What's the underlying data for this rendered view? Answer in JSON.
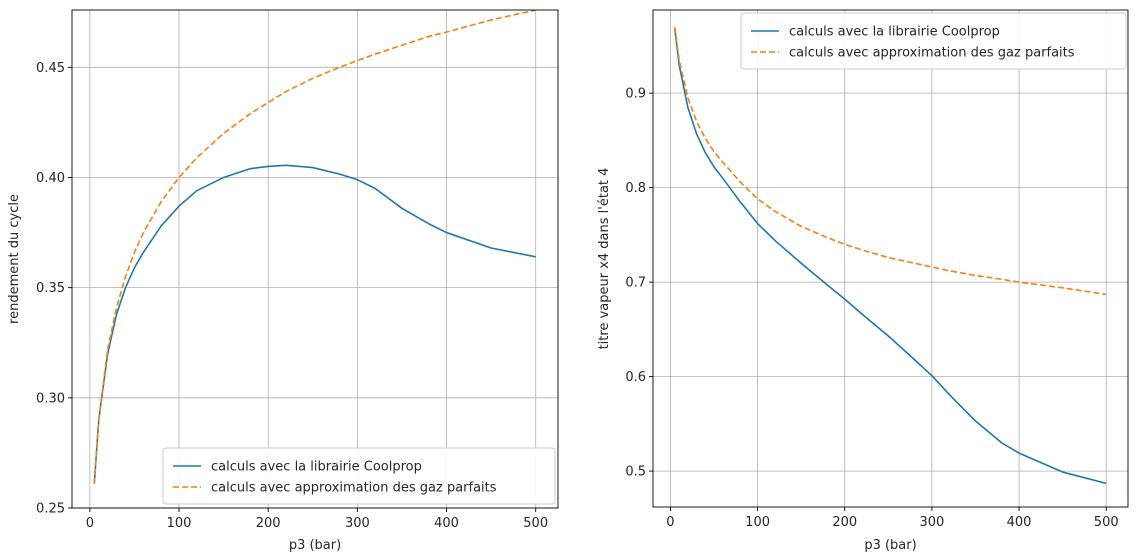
{
  "chart_data": [
    {
      "type": "line",
      "title": "",
      "xlabel": "p3 (bar)",
      "ylabel": "rendement du cycle",
      "xlim": [
        -20,
        525
      ],
      "ylim": [
        0.25,
        0.476
      ],
      "xticks": [
        0,
        100,
        200,
        300,
        400,
        500
      ],
      "xtick_labels": [
        "0",
        "100",
        "200",
        "300",
        "400",
        "500"
      ],
      "yticks": [
        0.25,
        0.3,
        0.35,
        0.4,
        0.45
      ],
      "ytick_labels": [
        "0.25",
        "0.30",
        "0.35",
        "0.40",
        "0.45"
      ],
      "grid": true,
      "legend_position": "lower-right",
      "x": [
        5,
        10,
        20,
        30,
        40,
        50,
        60,
        80,
        100,
        120,
        150,
        180,
        200,
        220,
        250,
        280,
        300,
        320,
        350,
        380,
        400,
        450,
        500
      ],
      "series": [
        {
          "name": "calculs avec la librairie Coolprop",
          "color": "#1f77b4",
          "dash": "solid",
          "values": [
            0.261,
            0.29,
            0.32,
            0.338,
            0.35,
            0.359,
            0.366,
            0.378,
            0.387,
            0.394,
            0.4,
            0.404,
            0.405,
            0.4055,
            0.4045,
            0.4015,
            0.399,
            0.395,
            0.386,
            0.379,
            0.375,
            0.368,
            0.364
          ]
        },
        {
          "name": "calculs avec approximation des gaz parfaits",
          "color": "#ff7f0e",
          "dash": "dashed",
          "values": [
            0.261,
            0.29,
            0.322,
            0.341,
            0.355,
            0.366,
            0.375,
            0.389,
            0.4,
            0.409,
            0.42,
            0.429,
            0.434,
            0.439,
            0.445,
            0.45,
            0.453,
            0.456,
            0.46,
            0.464,
            0.466,
            0.4715,
            0.476
          ]
        }
      ]
    },
    {
      "type": "line",
      "title": "",
      "xlabel": "p3 (bar)",
      "ylabel": "titre vapeur x4 dans l'état 4",
      "xlim": [
        -20,
        525
      ],
      "ylim": [
        0.462,
        0.988
      ],
      "xticks": [
        0,
        100,
        200,
        300,
        400,
        500
      ],
      "xtick_labels": [
        "0",
        "100",
        "200",
        "300",
        "400",
        "500"
      ],
      "yticks": [
        0.5,
        0.6,
        0.7,
        0.8,
        0.9
      ],
      "ytick_labels": [
        "0.5",
        "0.6",
        "0.7",
        "0.8",
        "0.9"
      ],
      "grid": true,
      "legend_position": "top-right",
      "x": [
        5,
        10,
        20,
        30,
        40,
        50,
        60,
        80,
        100,
        120,
        150,
        180,
        200,
        220,
        250,
        280,
        300,
        320,
        350,
        380,
        400,
        450,
        500
      ],
      "series": [
        {
          "name": "calculs avec la librairie Coolprop",
          "color": "#1f77b4",
          "dash": "solid",
          "values": [
            0.968,
            0.93,
            0.885,
            0.857,
            0.837,
            0.822,
            0.81,
            0.785,
            0.762,
            0.744,
            0.72,
            0.697,
            0.682,
            0.666,
            0.643,
            0.618,
            0.601,
            0.581,
            0.553,
            0.53,
            0.519,
            0.499,
            0.487
          ]
        },
        {
          "name": "calculs avec approximation des gaz parfaits",
          "color": "#ff7f0e",
          "dash": "dashed",
          "values": [
            0.97,
            0.935,
            0.895,
            0.87,
            0.852,
            0.838,
            0.827,
            0.806,
            0.788,
            0.775,
            0.759,
            0.747,
            0.74,
            0.734,
            0.726,
            0.72,
            0.716,
            0.712,
            0.707,
            0.703,
            0.7,
            0.694,
            0.687
          ]
        }
      ]
    }
  ]
}
